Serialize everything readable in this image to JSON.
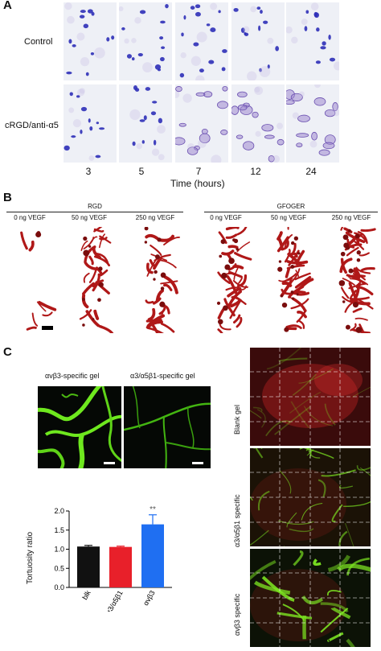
{
  "panel_a": {
    "letter": "A",
    "row_labels": [
      "Control",
      "cRGD/anti-α5"
    ],
    "time_points": [
      "3",
      "5",
      "7",
      "12",
      "24"
    ],
    "xlabel": "Time (hours)"
  },
  "panel_b": {
    "letter": "B",
    "groups": [
      {
        "name": "RGD",
        "columns": [
          "0 ng VEGF",
          "50 ng VEGF",
          "250 ng VEGF"
        ]
      },
      {
        "name": "GFOGER",
        "columns": [
          "0 ng VEGF",
          "50 ng VEGF",
          "250 ng VEGF"
        ]
      }
    ]
  },
  "panel_c": {
    "letter": "C",
    "gel_labels": [
      "αvβ3-specific gel",
      "α3/α5β1-specific gel"
    ],
    "side_labels": [
      "Blank gel",
      "α3/α5β1 specific",
      "αvβ3 specific"
    ],
    "significance": "**"
  },
  "colors": {
    "bar_blk": "#111111",
    "bar_a3a5b1": "#e8202a",
    "bar_avb3": "#1f6ff2",
    "vessel_red": "#b01818",
    "vessel_green": "#66e21a"
  },
  "chart_data": {
    "type": "bar",
    "categories": [
      "blk",
      "α3/α5β1",
      "αvβ3"
    ],
    "values": [
      1.07,
      1.06,
      1.65
    ],
    "errors": [
      0.03,
      0.02,
      0.25
    ],
    "ylabel": "Tortuosity ratio",
    "ylim": [
      0,
      2.0
    ],
    "yticks": [
      "0.0",
      "0.5",
      "1.0",
      "1.5",
      "2.0"
    ]
  }
}
